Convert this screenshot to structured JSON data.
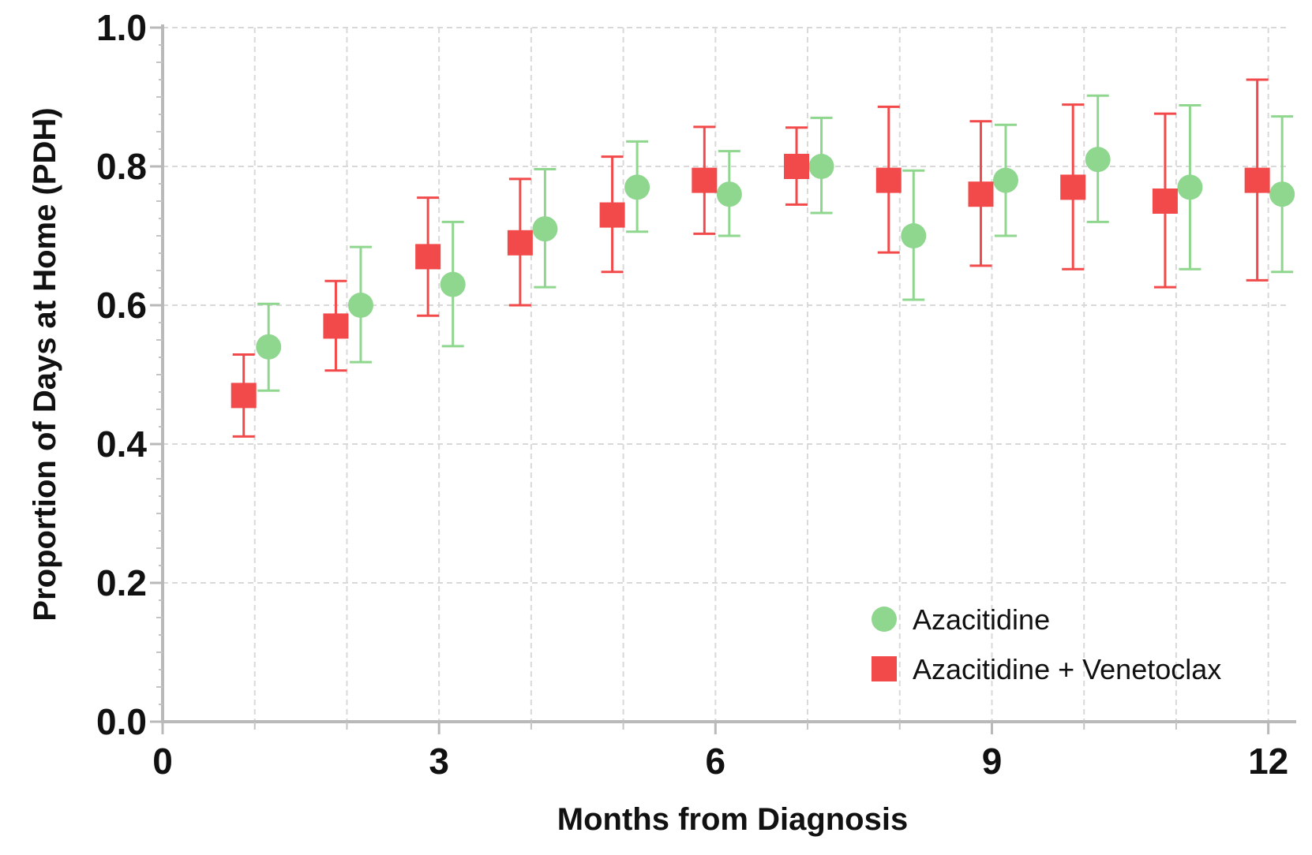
{
  "chart_data": {
    "type": "scatter",
    "xlabel": "Months from Diagnosis",
    "ylabel": "Proportion of Days at  Home (PDH)",
    "xlim": [
      0,
      12.2
    ],
    "ylim": [
      0,
      1.0
    ],
    "x_ticks": [
      0,
      3,
      6,
      9,
      12
    ],
    "x_tick_labels": [
      "0",
      "3",
      "6",
      "9",
      "12"
    ],
    "y_ticks": [
      0.0,
      0.2,
      0.4,
      0.6,
      0.8,
      1.0
    ],
    "y_tick_labels": [
      "0.0",
      "0.2",
      "0.4",
      "0.6",
      "0.8",
      "1.0"
    ],
    "grid": true,
    "legend_position": "bottom-right",
    "series": [
      {
        "name": "Azacitidine",
        "marker": "circle",
        "color": "#8fd68f",
        "x": [
          1.15,
          2.15,
          3.15,
          4.15,
          5.15,
          6.15,
          7.15,
          8.15,
          9.15,
          10.15,
          11.15,
          12.15
        ],
        "y": [
          0.54,
          0.6,
          0.63,
          0.71,
          0.77,
          0.76,
          0.8,
          0.7,
          0.78,
          0.81,
          0.77,
          0.76
        ],
        "lower": [
          0.477,
          0.518,
          0.541,
          0.626,
          0.706,
          0.7,
          0.733,
          0.608,
          0.7,
          0.72,
          0.652,
          0.648
        ],
        "upper": [
          0.602,
          0.684,
          0.72,
          0.796,
          0.836,
          0.822,
          0.87,
          0.794,
          0.86,
          0.902,
          0.888,
          0.872
        ]
      },
      {
        "name": "Azacitidine + Venetoclax",
        "marker": "square",
        "color": "#f24a4a",
        "x": [
          0.88,
          1.88,
          2.88,
          3.88,
          4.88,
          5.88,
          6.88,
          7.88,
          8.88,
          9.88,
          10.88,
          11.88
        ],
        "y": [
          0.47,
          0.57,
          0.67,
          0.69,
          0.73,
          0.78,
          0.8,
          0.78,
          0.76,
          0.77,
          0.75,
          0.78
        ],
        "lower": [
          0.411,
          0.506,
          0.585,
          0.6,
          0.648,
          0.703,
          0.745,
          0.676,
          0.657,
          0.652,
          0.626,
          0.636
        ],
        "upper": [
          0.529,
          0.635,
          0.755,
          0.782,
          0.814,
          0.857,
          0.856,
          0.886,
          0.865,
          0.889,
          0.876,
          0.925
        ]
      }
    ]
  }
}
